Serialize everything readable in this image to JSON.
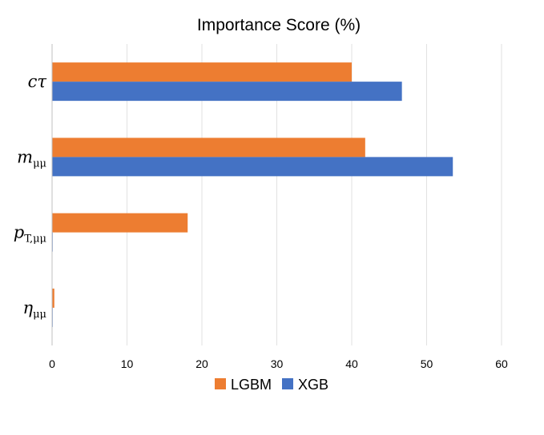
{
  "chart_data": {
    "type": "bar",
    "orientation": "horizontal",
    "title": "Importance Score (%)",
    "xlabel": "",
    "ylabel": "",
    "xlim": [
      0,
      60
    ],
    "x_ticks": [
      "0",
      "10",
      "20",
      "30",
      "40",
      "50",
      "60"
    ],
    "categories": [
      {
        "id": "ctau",
        "label": "cτ"
      },
      {
        "id": "m_mumu",
        "label": "m_μμ"
      },
      {
        "id": "pT_mumu",
        "label": "p_T,μμ"
      },
      {
        "id": "eta_mumu",
        "label": "η_μμ"
      }
    ],
    "series": [
      {
        "name": "LGBM",
        "color": "#ED7D31",
        "values": [
          40.0,
          41.8,
          18.1,
          0.3
        ]
      },
      {
        "name": "XGB",
        "color": "#4472C4",
        "values": [
          46.7,
          53.5,
          0.0,
          0.0
        ]
      }
    ],
    "grid": true,
    "legend": "bottom"
  }
}
